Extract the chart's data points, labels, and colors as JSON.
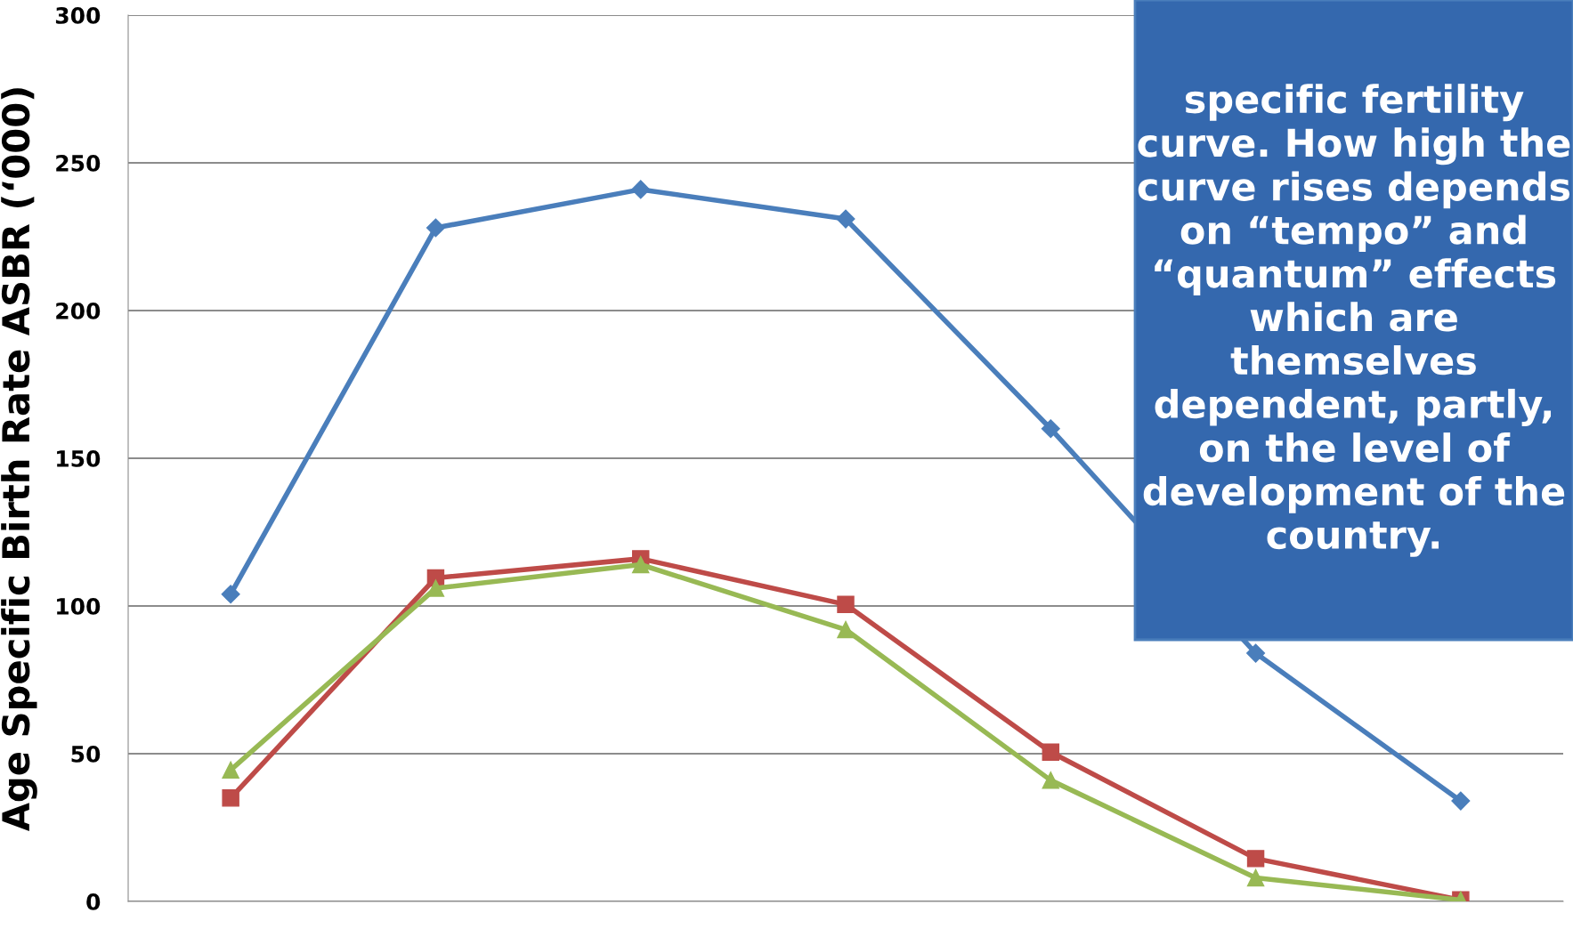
{
  "chart_data": {
    "type": "line",
    "ylabel": "Age Specific Birth Rate ASBR (‘000)",
    "categories": [
      null,
      null,
      null,
      null,
      null,
      null,
      null
    ],
    "series": [
      {
        "color": "#4a7ebb",
        "marker": "diamond",
        "values": [
          104,
          228,
          241,
          231,
          160,
          84,
          34
        ]
      },
      {
        "color": "#be4b48",
        "marker": "square",
        "values": [
          35,
          109.5,
          116,
          100.5,
          50.5,
          14.5,
          0.5
        ]
      },
      {
        "color": "#98b954",
        "marker": "triangle",
        "values": [
          44.5,
          106,
          114,
          92,
          41,
          8,
          0.5
        ]
      }
    ],
    "ylim": [
      0,
      300
    ],
    "yticks": [
      0,
      50,
      100,
      150,
      200,
      250,
      300
    ],
    "grid": "y",
    "legend": false,
    "line_style": "solid",
    "annotations": [
      "specific fertility\ncurve. How high the\ncurve rises depends\non “tempo” and\n“quantum” effects\nwhich are\nthemselves\ndependent, partly,\non the level of\ndevelopment of the\ncountry."
    ]
  }
}
